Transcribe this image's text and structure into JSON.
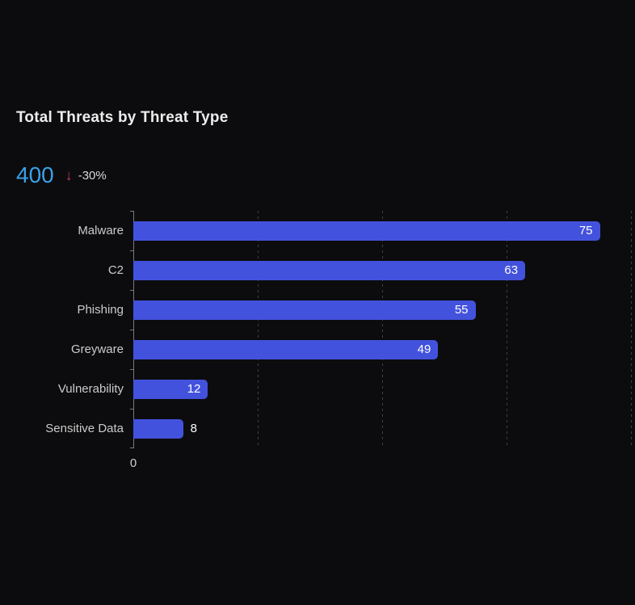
{
  "card": {
    "title": "Total Threats by Threat Type",
    "kpi": {
      "value": "400",
      "trend_arrow": "↓",
      "trend_delta": "-30%"
    }
  },
  "chart_data": {
    "type": "bar",
    "orientation": "horizontal",
    "title": "Total Threats by Threat Type",
    "categories": [
      "Malware",
      "C2",
      "Phishing",
      "Greyware",
      "Vulnerability",
      "Sensitive Data"
    ],
    "values": [
      75,
      63,
      55,
      49,
      12,
      8
    ],
    "xlabel": "",
    "ylabel": "",
    "xlim": [
      0,
      80
    ],
    "gridlines_at": [
      20,
      40,
      60,
      80
    ],
    "x_tick_labels": [
      "0"
    ],
    "grid": true,
    "legend": false,
    "value_labels": "at bar end, white; outside bar when bar is short"
  },
  "colors": {
    "background": "#0c0c0e",
    "title_text": "#ededed",
    "kpi_value": "#3aa1e9",
    "trend_arrow": "#c9396c",
    "delta_text": "#d8d8d8",
    "bar_fill": "#4352dc",
    "bar_value_text": "#ffffff",
    "category_label": "#cbcbcb",
    "axis_line": "#7b7b7b",
    "gridline": "#414145",
    "tick_label": "#d0d0d0"
  }
}
